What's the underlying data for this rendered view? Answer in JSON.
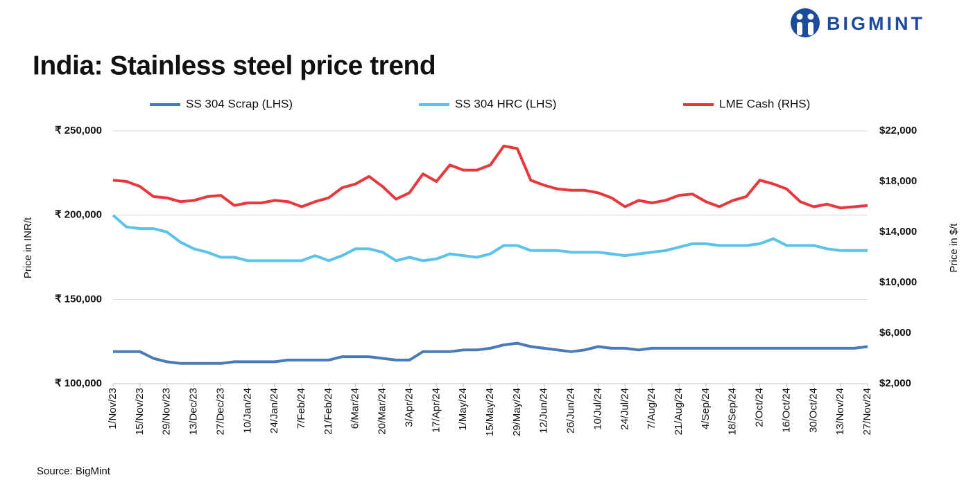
{
  "brand": "BIGMINT",
  "chart_data": {
    "type": "line",
    "title": "India: Stainless steel price trend",
    "y_label": "Price in INR/t",
    "y2_label": "Price in $/t",
    "source": "Source: BigMint",
    "legend": "top",
    "grid": true,
    "x": [
      "2023-11-01",
      "2023-11-08",
      "2023-11-15",
      "2023-11-22",
      "2023-11-29",
      "2023-12-06",
      "2023-12-13",
      "2023-12-20",
      "2023-12-27",
      "2024-01-03",
      "2024-01-10",
      "2024-01-17",
      "2024-01-24",
      "2024-01-31",
      "2024-02-07",
      "2024-02-14",
      "2024-02-21",
      "2024-02-28",
      "2024-03-06",
      "2024-03-13",
      "2024-03-20",
      "2024-03-27",
      "2024-04-03",
      "2024-04-10",
      "2024-04-17",
      "2024-04-24",
      "2024-05-01",
      "2024-05-08",
      "2024-05-15",
      "2024-05-22",
      "2024-05-29",
      "2024-06-05",
      "2024-06-12",
      "2024-06-19",
      "2024-06-26",
      "2024-07-03",
      "2024-07-10",
      "2024-07-17",
      "2024-07-24",
      "2024-07-31",
      "2024-08-07",
      "2024-08-14",
      "2024-08-21",
      "2024-08-28",
      "2024-09-04",
      "2024-09-11",
      "2024-09-18",
      "2024-09-25",
      "2024-10-02",
      "2024-10-09",
      "2024-10-16",
      "2024-10-23",
      "2024-10-30",
      "2024-11-06",
      "2024-11-13",
      "2024-11-20",
      "2024-11-27"
    ],
    "xlim": [
      "2023-11-01",
      "2024-11-27"
    ],
    "xticks": [
      {
        "value": "2023-11-01",
        "label": "1/Nov/23"
      },
      {
        "value": "2023-11-15",
        "label": "15/Nov/23"
      },
      {
        "value": "2023-11-29",
        "label": "29/Nov/23"
      },
      {
        "value": "2023-12-13",
        "label": "13/Dec/23"
      },
      {
        "value": "2023-12-27",
        "label": "27/Dec/23"
      },
      {
        "value": "2024-01-10",
        "label": "10/Jan/24"
      },
      {
        "value": "2024-01-24",
        "label": "24/Jan/24"
      },
      {
        "value": "2024-02-07",
        "label": "7/Feb/24"
      },
      {
        "value": "2024-02-21",
        "label": "21/Feb/24"
      },
      {
        "value": "2024-03-06",
        "label": "6/Mar/24"
      },
      {
        "value": "2024-03-20",
        "label": "20/Mar/24"
      },
      {
        "value": "2024-04-03",
        "label": "3/Apr/24"
      },
      {
        "value": "2024-04-17",
        "label": "17/Apr/24"
      },
      {
        "value": "2024-05-01",
        "label": "1/May/24"
      },
      {
        "value": "2024-05-15",
        "label": "15/May/24"
      },
      {
        "value": "2024-05-29",
        "label": "29/May/24"
      },
      {
        "value": "2024-06-12",
        "label": "12/Jun/24"
      },
      {
        "value": "2024-06-26",
        "label": "26/Jun/24"
      },
      {
        "value": "2024-07-10",
        "label": "10/Jul/24"
      },
      {
        "value": "2024-07-24",
        "label": "24/Jul/24"
      },
      {
        "value": "2024-08-07",
        "label": "7/Aug/24"
      },
      {
        "value": "2024-08-21",
        "label": "21/Aug/24"
      },
      {
        "value": "2024-09-04",
        "label": "4/Sep/24"
      },
      {
        "value": "2024-09-18",
        "label": "18/Sep/24"
      },
      {
        "value": "2024-10-02",
        "label": "2/Oct/24"
      },
      {
        "value": "2024-10-16",
        "label": "16/Oct/24"
      },
      {
        "value": "2024-10-30",
        "label": "30/Oct/24"
      },
      {
        "value": "2024-11-13",
        "label": "13/Nov/24"
      },
      {
        "value": "2024-11-27",
        "label": "27/Nov/24"
      }
    ],
    "ylim": [
      100000,
      250000
    ],
    "yticks": [
      {
        "value": 100000,
        "label": "₹ 100,000"
      },
      {
        "value": 150000,
        "label": "₹ 150,000"
      },
      {
        "value": 200000,
        "label": "₹ 200,000"
      },
      {
        "value": 250000,
        "label": "₹ 250,000"
      }
    ],
    "y2lim": [
      2000,
      22000
    ],
    "y2ticks": [
      {
        "value": 2000,
        "label": "$2,000"
      },
      {
        "value": 6000,
        "label": "$6,000"
      },
      {
        "value": 10000,
        "label": "$10,000"
      },
      {
        "value": 14000,
        "label": "$14,000"
      },
      {
        "value": 18000,
        "label": "$18,000"
      },
      {
        "value": 22000,
        "label": "$22,000"
      }
    ],
    "series": [
      {
        "name": "SS 304 Scrap (LHS)",
        "color": "#4a7ab8",
        "values": [
          119000,
          119000,
          119000,
          115000,
          113000,
          112000,
          112000,
          112000,
          112000,
          113000,
          113000,
          113000,
          113000,
          114000,
          114000,
          114000,
          114000,
          116000,
          116000,
          116000,
          115000,
          114000,
          114000,
          119000,
          119000,
          119000,
          120000,
          120000,
          121000,
          123000,
          124000,
          122000,
          121000,
          120000,
          119000,
          120000,
          122000,
          121000,
          121000,
          120000,
          121000,
          121000,
          121000,
          121000,
          121000,
          121000,
          121000,
          121000,
          121000,
          121000,
          121000,
          121000,
          121000,
          121000,
          121000,
          121000,
          122000
        ]
      },
      {
        "name": "SS 304 HRC (LHS)",
        "color": "#5bc3ea",
        "values": [
          200000,
          193000,
          192000,
          192000,
          190000,
          184000,
          180000,
          178000,
          175000,
          175000,
          173000,
          173000,
          173000,
          173000,
          173000,
          176000,
          173000,
          176000,
          180000,
          180000,
          178000,
          173000,
          175000,
          173000,
          174000,
          177000,
          176000,
          175000,
          177000,
          182000,
          182000,
          179000,
          179000,
          179000,
          178000,
          178000,
          178000,
          177000,
          176000,
          177000,
          178000,
          179000,
          181000,
          183000,
          183000,
          182000,
          182000,
          182000,
          183000,
          186000,
          182000,
          182000,
          182000,
          180000,
          179000,
          179000,
          179000
        ]
      },
      {
        "name": "LME Cash (RHS)",
        "color": "#e8383d",
        "axis": "y2",
        "values": [
          18100,
          18000,
          17600,
          16800,
          16700,
          16400,
          16500,
          16800,
          16900,
          16100,
          16300,
          16300,
          16500,
          16400,
          16000,
          16400,
          16700,
          17500,
          17800,
          18400,
          17600,
          16600,
          17100,
          18600,
          18000,
          19300,
          18900,
          18900,
          19300,
          20800,
          20600,
          18100,
          17700,
          17400,
          17300,
          17300,
          17100,
          16700,
          16000,
          16500,
          16300,
          16500,
          16900,
          17000,
          16400,
          16000,
          16500,
          16800,
          18100,
          17800,
          17400,
          16400,
          16000,
          16200,
          15900,
          16000,
          16100
        ]
      }
    ]
  }
}
